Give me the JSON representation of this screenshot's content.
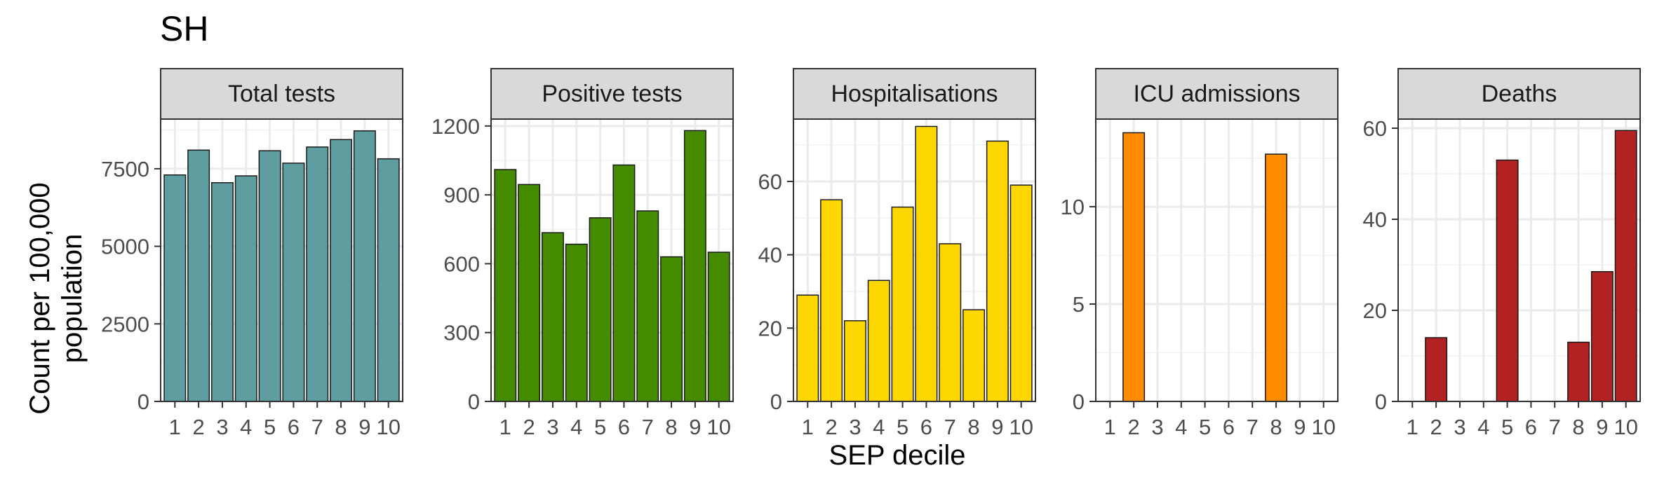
{
  "title": "SH",
  "ylabel_line1": "Count per 100,000",
  "ylabel_line2": "population",
  "xlabel": "SEP decile",
  "chart_data": [
    {
      "type": "bar",
      "panel_title": "Total tests",
      "categories": [
        "1",
        "2",
        "3",
        "4",
        "5",
        "6",
        "7",
        "8",
        "9",
        "10"
      ],
      "values": [
        7300,
        8100,
        7050,
        7270,
        8080,
        7680,
        8200,
        8440,
        8720,
        7820
      ],
      "ylim": [
        0,
        9100
      ],
      "yticks": [
        0,
        2500,
        5000,
        7500
      ],
      "color": "#5f9ea0"
    },
    {
      "type": "bar",
      "panel_title": "Positive tests",
      "categories": [
        "1",
        "2",
        "3",
        "4",
        "5",
        "6",
        "7",
        "8",
        "9",
        "10"
      ],
      "values": [
        1010,
        945,
        735,
        685,
        800,
        1030,
        830,
        630,
        1180,
        650
      ],
      "ylim": [
        0,
        1230
      ],
      "yticks": [
        0,
        300,
        600,
        900,
        1200
      ],
      "color": "#458b00"
    },
    {
      "type": "bar",
      "panel_title": "Hospitalisations",
      "categories": [
        "1",
        "2",
        "3",
        "4",
        "5",
        "6",
        "7",
        "8",
        "9",
        "10"
      ],
      "values": [
        29,
        55,
        22,
        33,
        53,
        75,
        43,
        25,
        71,
        59
      ],
      "ylim": [
        0,
        77
      ],
      "yticks": [
        0,
        20,
        40,
        60
      ],
      "color": "#ffd700"
    },
    {
      "type": "bar",
      "panel_title": "ICU admissions",
      "categories": [
        "1",
        "2",
        "3",
        "4",
        "5",
        "6",
        "7",
        "8",
        "9",
        "10"
      ],
      "values": [
        0,
        13.8,
        0,
        0,
        0,
        0,
        0,
        12.7,
        0,
        0
      ],
      "ylim": [
        0,
        14.5
      ],
      "yticks": [
        0,
        5,
        10
      ],
      "color": "#ff8c00"
    },
    {
      "type": "bar",
      "panel_title": "Deaths",
      "categories": [
        "1",
        "2",
        "3",
        "4",
        "5",
        "6",
        "7",
        "8",
        "9",
        "10"
      ],
      "values": [
        0,
        14,
        0,
        0,
        53,
        0,
        0,
        13,
        28.5,
        59.5
      ],
      "ylim": [
        0,
        62
      ],
      "yticks": [
        0,
        20,
        40,
        60
      ],
      "color": "#b22222"
    }
  ]
}
